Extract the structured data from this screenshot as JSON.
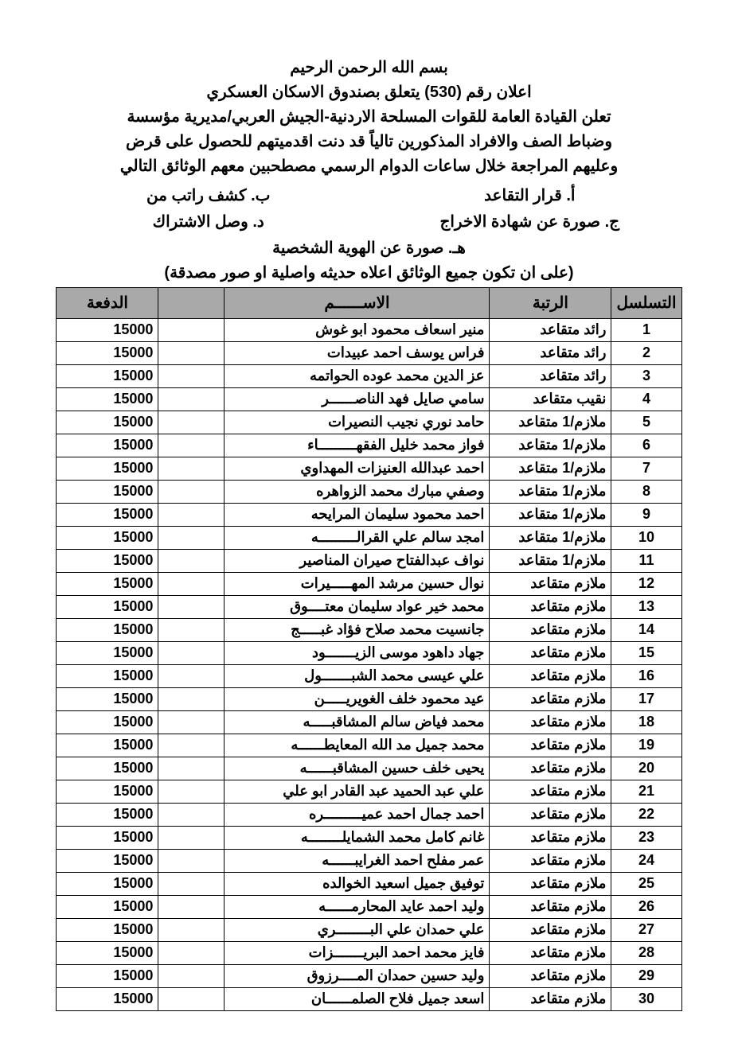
{
  "header": {
    "basmala": "بسم الله الرحمن الرحيم",
    "title": "اعلان رقم (530) يتعلق بصندوق الاسكان العسكري",
    "line1": "تعلن القيادة العامة للقوات المسلحة الاردنية-الجيش العربي/مديرية مؤسسة",
    "line2": "وضباط الصف والافراد المذكورين تالياً قد دنت اقدميتهم للحصول على قرض",
    "line3": "وعليهم المراجعة خلال ساعات الدوام الرسمي مصطحبين معهم الوثائق التالي"
  },
  "documents": {
    "a": "أ. قرار التقاعد",
    "b": "ب. كشف راتب من",
    "c": "ج. صورة عن شهادة الاخراج",
    "d": "د. وصل الاشتراك",
    "e": "هـ. صورة عن الهوية الشخصية"
  },
  "note": "(على ان تكون جميع الوثائق اعلاه حديثه واصلية او صور مصدقة)",
  "table": {
    "columns": {
      "seq": "التسلسل",
      "rank": "الرتبة",
      "name": "الاســــــم",
      "gap": "",
      "payment": "الدفعة"
    },
    "header_bg": "#a9a9a9",
    "border_color": "#000000",
    "rows": [
      {
        "seq": "1",
        "rank": "رائد متقاعد",
        "name": "منير اسعاف محمود ابو غوش",
        "payment": "15000"
      },
      {
        "seq": "2",
        "rank": "رائد متقاعد",
        "name": "فراس يوسف احمد عبيدات",
        "payment": "15000"
      },
      {
        "seq": "3",
        "rank": "رائد متقاعد",
        "name": "عز الدين محمد عوده الحواتمه",
        "payment": "15000"
      },
      {
        "seq": "4",
        "rank": "نقيب متقاعد",
        "name": "سامي صايل فهد الناصــــــر",
        "payment": "15000"
      },
      {
        "seq": "5",
        "rank": "ملازم/1 متقاعد",
        "name": "حامد نوري نجيب النصيرات",
        "payment": "15000"
      },
      {
        "seq": "6",
        "rank": "ملازم/1 متقاعد",
        "name": "فواز محمد خليل الفقهـــــــــاء",
        "payment": "15000"
      },
      {
        "seq": "7",
        "rank": "ملازم/1 متقاعد",
        "name": "احمد عبدالله العنيزات المهداوي",
        "payment": "15000"
      },
      {
        "seq": "8",
        "rank": "ملازم/1 متقاعد",
        "name": "وصفي مبارك محمد الزواهره",
        "payment": "15000"
      },
      {
        "seq": "9",
        "rank": "ملازم/1 متقاعد",
        "name": "احمد محمود سليمان المرايحه",
        "payment": "15000"
      },
      {
        "seq": "10",
        "rank": "ملازم/1 متقاعد",
        "name": "امجد سالم علي القرالـــــــــه",
        "payment": "15000"
      },
      {
        "seq": "11",
        "rank": "ملازم/1 متقاعد",
        "name": "نواف عبدالفتاح صيران المناصير",
        "payment": "15000"
      },
      {
        "seq": "12",
        "rank": "ملازم متقاعد",
        "name": "نوال حسين مرشد المهـــــيرات",
        "payment": "15000"
      },
      {
        "seq": "13",
        "rank": "ملازم متقاعد",
        "name": "محمد خير عواد سليمان معتــــوق",
        "payment": "15000"
      },
      {
        "seq": "14",
        "rank": "ملازم متقاعد",
        "name": "جانسيت محمد صلاح فؤاد غبـــــج",
        "payment": "15000"
      },
      {
        "seq": "15",
        "rank": "ملازم متقاعد",
        "name": "جهاد داهود موسى الزيـــــــود",
        "payment": "15000"
      },
      {
        "seq": "16",
        "rank": "ملازم متقاعد",
        "name": "علي عيسى محمد الشبـــــــول",
        "payment": "15000"
      },
      {
        "seq": "17",
        "rank": "ملازم متقاعد",
        "name": "عيد محمود خلف الغويريـــــن",
        "payment": "15000"
      },
      {
        "seq": "18",
        "rank": "ملازم متقاعد",
        "name": "محمد فياض سالم المشاقبـــــه",
        "payment": "15000"
      },
      {
        "seq": "19",
        "rank": "ملازم متقاعد",
        "name": "محمد جميل مد الله المعايطــــــه",
        "payment": "15000"
      },
      {
        "seq": "20",
        "rank": "ملازم متقاعد",
        "name": "يحيى خلف حسين المشاقبــــــه",
        "payment": "15000"
      },
      {
        "seq": "21",
        "rank": "ملازم متقاعد",
        "name": "علي عبد الحميد عبد القادر ابو علي",
        "payment": "15000"
      },
      {
        "seq": "22",
        "rank": "ملازم متقاعد",
        "name": "احمد جمال احمد عميـــــــــره",
        "payment": "15000"
      },
      {
        "seq": "23",
        "rank": "ملازم متقاعد",
        "name": "غانم كامل محمد الشمايلــــــــه",
        "payment": "15000"
      },
      {
        "seq": "24",
        "rank": "ملازم متقاعد",
        "name": "عمر مفلح احمد الغرايبــــــه",
        "payment": "15000"
      },
      {
        "seq": "25",
        "rank": "ملازم متقاعد",
        "name": "توفيق جميل اسعيد الخوالده",
        "payment": "15000"
      },
      {
        "seq": "26",
        "rank": "ملازم متقاعد",
        "name": "وليد احمد عايد المحارمــــــه",
        "payment": "15000"
      },
      {
        "seq": "27",
        "rank": "ملازم متقاعد",
        "name": "علي حمدان علي البــــــــري",
        "payment": "15000"
      },
      {
        "seq": "28",
        "rank": "ملازم متقاعد",
        "name": "فايز محمد احمد البريـــــــزات",
        "payment": "15000"
      },
      {
        "seq": "29",
        "rank": "ملازم متقاعد",
        "name": "وليد حسين حمدان المــــرزوق",
        "payment": "15000"
      },
      {
        "seq": "30",
        "rank": "ملازم متقاعد",
        "name": "اسعد جميل فلاح الصلمــــــان",
        "payment": "15000"
      }
    ]
  }
}
